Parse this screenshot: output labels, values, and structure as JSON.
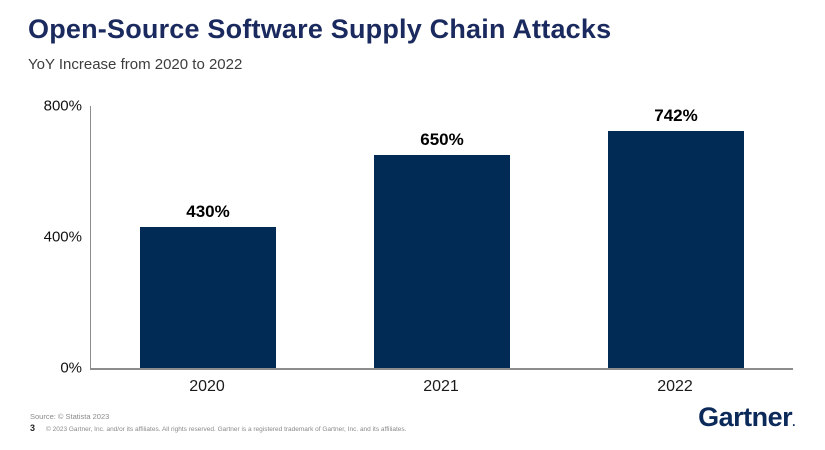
{
  "slide": {
    "title": "Open-Source Software Supply Chain Attacks",
    "subtitle": "YoY Increase from 2020 to 2022"
  },
  "chart_data": {
    "type": "bar",
    "categories": [
      "2020",
      "2021",
      "2022"
    ],
    "values": [
      430,
      650,
      742
    ],
    "value_labels": [
      "430%",
      "650%",
      "742%"
    ],
    "title": "Open-Source Software Supply Chain Attacks",
    "subtitle": "YoY Increase from 2020 to 2022",
    "xlabel": "",
    "ylabel": "",
    "ylim": [
      0,
      800
    ],
    "yticks": [
      0,
      400,
      800
    ],
    "ytick_labels": [
      "0%",
      "400%",
      "800%"
    ],
    "grid": false,
    "legend": "none",
    "bar_color": "#012a54"
  },
  "footer": {
    "source": "Source: © Statista 2023",
    "page_number": "3",
    "copyright": "© 2023 Gartner, Inc. and/or its affiliates. All rights reserved. Gartner is a registered trademark of Gartner, Inc. and its affiliates.",
    "logo_text": "Gartner",
    "logo_mark": "."
  },
  "colors": {
    "title": "#1b2a5e",
    "bar": "#012a54",
    "axis": "#8c8c8c",
    "logo": "#0b2a5a"
  }
}
